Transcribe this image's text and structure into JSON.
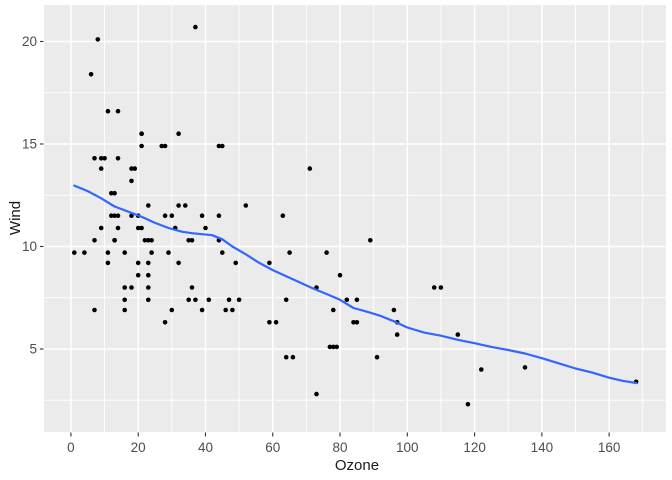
{
  "chart_data": {
    "type": "scatter",
    "title": "",
    "xlabel": "Ozone",
    "ylabel": "Wind",
    "xlim": [
      -8.0,
      176.9
    ],
    "ylim": [
      0.95,
      21.78
    ],
    "grid": "on",
    "legend": "none",
    "x_major_ticks": {
      "values": [
        0,
        20,
        40,
        60,
        80,
        100,
        120,
        140,
        160
      ],
      "labels": [
        "0",
        "20",
        "40",
        "60",
        "80",
        "100",
        "120",
        "140",
        "160"
      ]
    },
    "y_major_ticks": {
      "values": [
        5,
        10,
        15,
        20
      ],
      "labels": [
        "5",
        "10",
        "15",
        "20"
      ]
    },
    "x_minor_ticks": [
      10,
      30,
      50,
      70,
      90,
      110,
      130,
      150,
      170
    ],
    "y_minor_ticks": [
      2.5,
      7.5,
      12.5,
      17.5
    ],
    "points": {
      "x": [
        41,
        36,
        12,
        18,
        28,
        23,
        19,
        8,
        7,
        16,
        11,
        14,
        18,
        14,
        34,
        6,
        30,
        11,
        1,
        11,
        4,
        32,
        23,
        45,
        115,
        37,
        29,
        71,
        39,
        23,
        21,
        37,
        20,
        12,
        13,
        135,
        49,
        32,
        64,
        40,
        77,
        97,
        97,
        85,
        10,
        27,
        7,
        48,
        35,
        61,
        79,
        63,
        16,
        80,
        108,
        20,
        52,
        82,
        50,
        64,
        59,
        39,
        9,
        16,
        78,
        35,
        66,
        122,
        89,
        110,
        44,
        28,
        65,
        22,
        59,
        23,
        31,
        44,
        21,
        9,
        45,
        168,
        73,
        76,
        118,
        84,
        85,
        96,
        78,
        73,
        91,
        47,
        32,
        20,
        23,
        21,
        24,
        44,
        21,
        28,
        9,
        13,
        46,
        18,
        13,
        24,
        16,
        13,
        23,
        36,
        7,
        14,
        30,
        14,
        18,
        20
      ],
      "y": [
        7.4,
        8.0,
        12.6,
        11.5,
        14.9,
        8.6,
        13.8,
        20.1,
        6.9,
        9.7,
        9.2,
        10.9,
        13.2,
        11.5,
        12.0,
        18.4,
        11.5,
        9.7,
        9.7,
        16.6,
        9.7,
        12.0,
        12.0,
        14.9,
        5.7,
        7.4,
        9.7,
        13.8,
        11.5,
        8.0,
        14.9,
        20.7,
        9.2,
        11.5,
        10.3,
        4.1,
        9.2,
        9.2,
        4.6,
        10.9,
        5.1,
        6.3,
        5.7,
        7.4,
        14.3,
        14.9,
        14.3,
        6.9,
        10.3,
        6.3,
        5.1,
        11.5,
        6.9,
        8.6,
        8.0,
        8.6,
        12.0,
        7.4,
        7.4,
        7.4,
        9.2,
        6.9,
        13.8,
        7.4,
        6.9,
        7.4,
        4.6,
        4.0,
        10.3,
        8.0,
        11.5,
        11.5,
        9.7,
        10.3,
        6.3,
        7.4,
        10.9,
        10.3,
        15.5,
        14.3,
        9.7,
        3.4,
        8.0,
        9.7,
        2.3,
        6.3,
        6.3,
        6.9,
        5.1,
        2.8,
        4.6,
        7.4,
        15.5,
        10.9,
        10.3,
        10.9,
        9.7,
        14.9,
        15.5,
        6.3,
        10.9,
        11.5,
        6.9,
        13.8,
        10.3,
        10.3,
        8.0,
        12.6,
        9.2,
        10.3,
        10.3,
        16.6,
        6.9,
        14.3,
        8.0,
        11.5
      ]
    },
    "smooth": {
      "type": "loess",
      "x": [
        1,
        5,
        9,
        13,
        17,
        21,
        25,
        29,
        33,
        36,
        39,
        42,
        45,
        48,
        52,
        56,
        60,
        64,
        68,
        72,
        76,
        80,
        84,
        88,
        92,
        96,
        100,
        105,
        110,
        115,
        120,
        125,
        130,
        135,
        140,
        145,
        150,
        155,
        160,
        164,
        168
      ],
      "y": [
        12.97,
        12.7,
        12.35,
        11.95,
        11.7,
        11.45,
        11.15,
        10.9,
        10.72,
        10.65,
        10.6,
        10.55,
        10.35,
        10.0,
        9.62,
        9.2,
        8.85,
        8.55,
        8.25,
        7.95,
        7.68,
        7.4,
        7.0,
        6.82,
        6.62,
        6.35,
        6.05,
        5.8,
        5.65,
        5.45,
        5.28,
        5.1,
        4.95,
        4.78,
        4.55,
        4.3,
        4.05,
        3.85,
        3.6,
        3.45,
        3.34
      ]
    },
    "style": {
      "outer_bg": "#FFFFFF",
      "panel_bg": "#EBEBEB",
      "grid_color": "#FFFFFF",
      "point_color": "#000000",
      "smooth_color": "#3366FF",
      "tick_mark_color": "#333333",
      "tick_label_color": "#4D4D4D",
      "axis_title_color": "#1A1A1A"
    }
  }
}
